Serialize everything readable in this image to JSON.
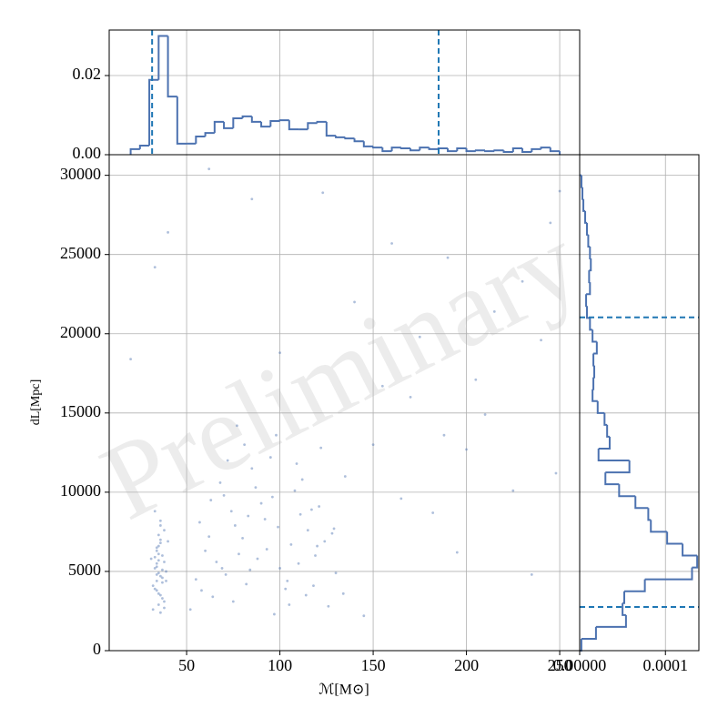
{
  "chart_data": [
    {
      "type": "step-hist",
      "orientation": "vertical",
      "color": "#4c72b0",
      "line_color": "#1f77b4",
      "bins": [
        20,
        25,
        30,
        35,
        40,
        45,
        50,
        55,
        60,
        65,
        70,
        75,
        80,
        85,
        90,
        95,
        100,
        105,
        110,
        115,
        120,
        125,
        130,
        135,
        140,
        145,
        150,
        155,
        160,
        165,
        170,
        175,
        180,
        185,
        190,
        195,
        200,
        205,
        210,
        215,
        220,
        225,
        230,
        235,
        240,
        245,
        250
      ],
      "counts": [
        0.0014,
        0.0023,
        0.0189,
        0.03,
        0.0147,
        0.0028,
        0.0028,
        0.0046,
        0.0055,
        0.0083,
        0.0067,
        0.0092,
        0.0097,
        0.0083,
        0.0071,
        0.0085,
        0.0087,
        0.0064,
        0.0064,
        0.008,
        0.0083,
        0.0048,
        0.0044,
        0.0041,
        0.0034,
        0.0021,
        0.0018,
        0.0009,
        0.0018,
        0.0016,
        0.0011,
        0.0018,
        0.0014,
        0.0016,
        0.0009,
        0.0016,
        0.0009,
        0.0011,
        0.0009,
        0.0011,
        0.0007,
        0.0016,
        0.0007,
        0.0014,
        0.0018,
        0.0009
      ],
      "vlines": [
        31.5,
        185.1
      ],
      "xlim": [
        8.5,
        260.7
      ],
      "ylim": [
        0,
        0.0315
      ],
      "yticks": [
        {
          "value": 0,
          "label": "0.00"
        },
        0.02
      ],
      "grid": true
    },
    {
      "type": "scatter",
      "color": "#4c72b0",
      "watermark": "Preliminary",
      "xlabel": "ℳ[M⊙]",
      "ylabel": "dL[Mpc]",
      "x": [
        33,
        35,
        37,
        34,
        36,
        38,
        32,
        35,
        36,
        34,
        37,
        33,
        39,
        35,
        36,
        34,
        38,
        32,
        35,
        37,
        36,
        33,
        34,
        38,
        35,
        39,
        36,
        34,
        37,
        35,
        33,
        36,
        38,
        34,
        35,
        37,
        36,
        40,
        31,
        34,
        55,
        62,
        70,
        78,
        85,
        92,
        100,
        108,
        115,
        122,
        130,
        58,
        66,
        74,
        82,
        90,
        98,
        106,
        114,
        121,
        128,
        135,
        60,
        68,
        76,
        84,
        95,
        103,
        111,
        119,
        126,
        52,
        64,
        72,
        80,
        88,
        96,
        104,
        112,
        120,
        57,
        69,
        81,
        93,
        105,
        117,
        129,
        63,
        75,
        87,
        99,
        110,
        124,
        134,
        71,
        83,
        97,
        109,
        118,
        77,
        20,
        33,
        40,
        85,
        140,
        160,
        175,
        190,
        205,
        215,
        230,
        245,
        250,
        150,
        170,
        200,
        225,
        240,
        182,
        195,
        210,
        123,
        145,
        62,
        100,
        165,
        235,
        248,
        155,
        188
      ],
      "y": [
        5200,
        6100,
        4300,
        3800,
        7000,
        5600,
        2600,
        4900,
        8200,
        6500,
        3300,
        5900,
        4400,
        2900,
        6800,
        5300,
        7600,
        4100,
        3600,
        6000,
        4700,
        8800,
        5500,
        3100,
        7300,
        5000,
        2400,
        6300,
        4600,
        5700,
        3900,
        7900,
        2700,
        4400,
        6600,
        5100,
        3500,
        6900,
        5800,
        4800,
        4500,
        7200,
        9800,
        6100,
        11500,
        8300,
        5200,
        10100,
        7600,
        12800,
        4900,
        3800,
        5600,
        8800,
        4200,
        9300,
        13600,
        6700,
        3500,
        9100,
        7400,
        11000,
        6300,
        10600,
        7900,
        5100,
        12200,
        3900,
        8600,
        6000,
        2800,
        2600,
        3400,
        12000,
        7100,
        5800,
        9700,
        4400,
        10800,
        6600,
        8100,
        5200,
        13000,
        6400,
        2900,
        8900,
        7700,
        9500,
        3100,
        10300,
        7800,
        5500,
        6900,
        3600,
        4800,
        8500,
        2300,
        11800,
        4100,
        14200,
        18400,
        24200,
        26400,
        28500,
        22000,
        25700,
        19800,
        24800,
        17100,
        21400,
        23300,
        27000,
        29000,
        13000,
        16000,
        12700,
        10100,
        19600,
        8700,
        6200,
        14900,
        28900,
        2200,
        30400,
        18800,
        9600,
        4800,
        11200,
        16700,
        13600
      ],
      "xlim": [
        8.5,
        260.7
      ],
      "ylim": [
        0,
        31300
      ],
      "xticks": [
        50,
        100,
        150,
        200,
        250
      ],
      "yticks": [
        0,
        5000,
        10000,
        15000,
        20000,
        25000,
        30000
      ],
      "grid": true
    },
    {
      "type": "step-hist",
      "orientation": "horizontal",
      "color": "#4c72b0",
      "line_color": "#1f77b4",
      "bins": [
        0,
        750,
        1500,
        2250,
        3000,
        3750,
        4500,
        5250,
        6000,
        6750,
        7500,
        8250,
        9000,
        9750,
        10500,
        11250,
        12000,
        12750,
        13500,
        14250,
        15000,
        15750,
        16500,
        17250,
        18000,
        18750,
        19500,
        20250,
        21000,
        21750,
        22500,
        23250,
        24000,
        24750,
        25500,
        26250,
        27000,
        27750,
        28500,
        29250,
        30000
      ],
      "counts": [
        2e-06,
        1.9e-05,
        5.4e-05,
        5e-05,
        5.2e-05,
        7.6e-05,
        0.000131,
        0.000137,
        0.00012,
        0.000102,
        8.3e-05,
        8e-05,
        6.5e-05,
        4.6e-05,
        3e-05,
        5.8e-05,
        2.2e-05,
        3.5e-05,
        3.2e-05,
        2.9e-05,
        2.1e-05,
        1.5e-05,
        1.6e-05,
        1.7e-05,
        1.6e-05,
        2e-05,
        1.5e-05,
        1.2e-05,
        8.5e-06,
        7.5e-06,
        1.2e-05,
        1.1e-05,
        1.3e-05,
        1.2e-05,
        1e-05,
        8.5e-06,
        6.4e-06,
        4.3e-06,
        3.2e-06,
        2.1e-06
      ],
      "hlines": [
        21035,
        2760
      ],
      "xlim": [
        0,
        0.000139
      ],
      "ylim": [
        0,
        31300
      ],
      "xticks": [
        {
          "value": 0,
          "label": "0.00000"
        },
        0.0001
      ],
      "grid": true
    }
  ]
}
